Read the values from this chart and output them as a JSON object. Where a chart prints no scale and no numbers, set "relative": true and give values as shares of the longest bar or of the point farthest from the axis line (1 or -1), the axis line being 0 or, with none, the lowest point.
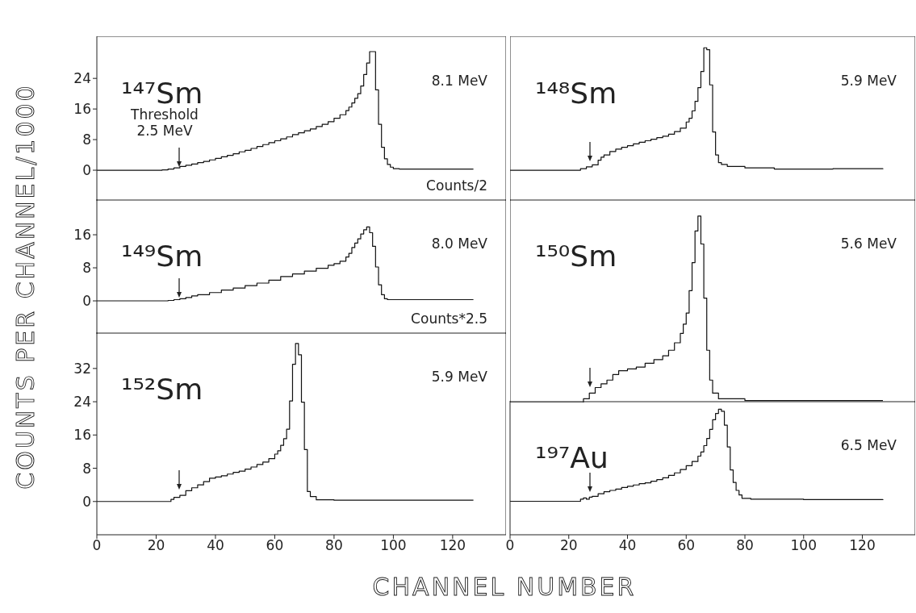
{
  "chart_data": [
    {
      "type": "step",
      "ylabel": "COUNTS PER CHANNEL/1000",
      "color": "#111111",
      "xlim": [
        0,
        138
      ],
      "xticks": [
        0,
        20,
        40,
        60,
        80,
        100,
        120
      ],
      "ylim": [
        -8,
        35
      ],
      "yticks": [
        0,
        8,
        16,
        24
      ],
      "tick_labels": "y",
      "x": [
        0,
        10,
        20,
        22,
        24,
        26,
        28,
        30,
        32,
        34,
        36,
        38,
        40,
        42,
        44,
        46,
        48,
        50,
        52,
        54,
        56,
        58,
        60,
        62,
        64,
        66,
        68,
        70,
        72,
        74,
        76,
        78,
        80,
        82,
        84,
        85,
        86,
        87,
        88,
        89,
        90,
        91,
        92,
        93,
        94,
        95,
        96,
        97,
        98,
        99,
        100,
        102,
        110,
        120,
        127
      ],
      "values": [
        0,
        0,
        0,
        0.1,
        0.3,
        0.6,
        1.0,
        1.3,
        1.6,
        2.0,
        2.3,
        2.7,
        3.1,
        3.5,
        3.9,
        4.3,
        4.8,
        5.2,
        5.7,
        6.2,
        6.7,
        7.2,
        7.7,
        8.2,
        8.7,
        9.3,
        9.8,
        10.3,
        10.8,
        11.4,
        12.0,
        12.7,
        13.6,
        14.5,
        15.6,
        16.5,
        17.6,
        18.8,
        20.0,
        22.0,
        25.0,
        28.0,
        31.0,
        31.0,
        21.0,
        12.0,
        6.0,
        3.0,
        1.5,
        0.8,
        0.4,
        0.3,
        0.3,
        0.3,
        0.3
      ],
      "annotations": [
        "¹⁴⁷Sm",
        "8.1 MeV",
        "Counts/2",
        "Threshold\n2.5 MeV"
      ]
    },
    {
      "type": "step",
      "color": "#111111",
      "xlim": [
        0,
        138
      ],
      "xticks": [
        0,
        20,
        40,
        60,
        80,
        100,
        120
      ],
      "ylim": [
        -8,
        24.6
      ],
      "yticks": [
        0,
        8,
        16
      ],
      "tick_labels": "y",
      "x": [
        0,
        20,
        22,
        24,
        26,
        28,
        30,
        32,
        34,
        38,
        42,
        46,
        50,
        54,
        58,
        62,
        66,
        70,
        74,
        78,
        80,
        82,
        84,
        85,
        86,
        87,
        88,
        89,
        90,
        91,
        92,
        93,
        94,
        95,
        96,
        97,
        98,
        110,
        127
      ],
      "values": [
        0,
        0,
        0,
        0.1,
        0.3,
        0.5,
        0.8,
        1.2,
        1.5,
        2.0,
        2.6,
        3.1,
        3.7,
        4.3,
        5.0,
        5.9,
        6.5,
        7.2,
        7.9,
        8.6,
        9.0,
        9.6,
        10.6,
        11.5,
        12.9,
        14.0,
        15.0,
        16.2,
        17.2,
        17.9,
        16.5,
        13.2,
        8.2,
        3.9,
        1.5,
        0.5,
        0.3,
        0.3,
        0.3
      ],
      "annotations": [
        "¹⁴⁹Sm",
        "8.0 MeV",
        "Counts*2.5"
      ]
    },
    {
      "type": "step",
      "xlabel": "CHANNEL NUMBER",
      "color": "#111111",
      "xlim": [
        0,
        138
      ],
      "xticks": [
        0,
        20,
        40,
        60,
        80,
        100,
        120
      ],
      "ylim": [
        -8,
        40.7
      ],
      "yticks": [
        0,
        8,
        16,
        24,
        32
      ],
      "x": [
        0,
        20,
        24,
        25,
        26,
        28,
        30,
        32,
        34,
        36,
        38,
        40,
        42,
        44,
        46,
        48,
        50,
        52,
        54,
        56,
        58,
        60,
        61,
        62,
        63,
        64,
        65,
        66,
        67,
        68,
        69,
        70,
        71,
        72,
        74,
        80,
        127
      ],
      "values": [
        0,
        0,
        0,
        0.5,
        1.0,
        1.5,
        2.6,
        3.3,
        4.0,
        4.8,
        5.6,
        5.9,
        6.2,
        6.6,
        7.0,
        7.3,
        7.8,
        8.3,
        8.9,
        9.5,
        10.3,
        11.4,
        12.2,
        13.5,
        15.1,
        17.4,
        24.2,
        33.0,
        38.0,
        35.3,
        23.9,
        12.5,
        2.4,
        1.2,
        0.4,
        0.3,
        0.3
      ],
      "annotations": [
        "¹⁵²Sm",
        "5.9 MeV"
      ]
    },
    {
      "type": "step",
      "color": "#111111",
      "xlim": [
        0,
        138
      ],
      "xticks": [
        0,
        20,
        40,
        60,
        80,
        100,
        120
      ],
      "ylim": [
        -8,
        35
      ],
      "yticks": [
        0,
        8,
        16,
        24
      ],
      "tick_labels": false,
      "x": [
        0,
        20,
        22,
        24,
        26,
        28,
        30,
        31,
        32,
        34,
        36,
        38,
        40,
        42,
        44,
        46,
        48,
        50,
        52,
        54,
        56,
        58,
        60,
        61,
        62,
        63,
        64,
        65,
        66,
        67,
        68,
        69,
        70,
        71,
        72,
        74,
        80,
        90,
        100,
        110,
        127
      ],
      "values": [
        0,
        0,
        0,
        0.4,
        0.9,
        1.4,
        2.6,
        3.4,
        4.0,
        4.9,
        5.5,
        6.0,
        6.4,
        6.9,
        7.3,
        7.7,
        8.1,
        8.5,
        8.9,
        9.4,
        10.1,
        11.0,
        12.6,
        13.6,
        15.5,
        18.0,
        21.6,
        25.8,
        32.0,
        31.5,
        22.3,
        10.0,
        4.0,
        2.0,
        1.5,
        1.0,
        0.6,
        0.3,
        0.3,
        0.4,
        0.5
      ],
      "annotations": [
        "¹⁴⁸Sm",
        "5.9 MeV"
      ]
    },
    {
      "type": "step",
      "relative": true,
      "color": "#111111",
      "xlim": [
        0,
        138
      ],
      "xticks": [
        0,
        20,
        40,
        60,
        80,
        100,
        120
      ],
      "tick_labels": false,
      "x": [
        0,
        20,
        23,
        25,
        27,
        29,
        31,
        33,
        35,
        37,
        40,
        43,
        46,
        49,
        52,
        54,
        56,
        58,
        59,
        60,
        61,
        62,
        63,
        64,
        65,
        66,
        67,
        68,
        69,
        71,
        80,
        127
      ],
      "values": [
        0,
        0,
        0,
        0.02,
        0.05,
        0.08,
        0.1,
        0.12,
        0.15,
        0.17,
        0.18,
        0.19,
        0.21,
        0.23,
        0.25,
        0.28,
        0.32,
        0.37,
        0.42,
        0.48,
        0.6,
        0.75,
        0.92,
        1.0,
        0.85,
        0.56,
        0.28,
        0.12,
        0.05,
        0.02,
        0.01,
        0.01
      ],
      "annotations": [
        "¹⁵⁰Sm",
        "5.6 MeV"
      ]
    },
    {
      "type": "step",
      "color": "#111111",
      "xlim": [
        0,
        138
      ],
      "xticks": [
        0,
        20,
        40,
        60,
        80,
        100,
        120
      ],
      "ylim": [
        -8,
        24
      ],
      "yticks": [
        0,
        8,
        16
      ],
      "tick_labels": "x",
      "x": [
        0,
        20,
        22,
        24,
        25,
        26,
        27,
        28,
        30,
        32,
        34,
        36,
        38,
        40,
        42,
        44,
        46,
        48,
        50,
        52,
        54,
        56,
        58,
        60,
        62,
        64,
        65,
        66,
        67,
        68,
        69,
        70,
        71,
        72,
        73,
        74,
        75,
        76,
        77,
        78,
        79,
        82,
        100,
        127
      ],
      "values": [
        0,
        0,
        0,
        0.5,
        0.8,
        0.5,
        1.0,
        1.2,
        1.8,
        2.3,
        2.6,
        2.9,
        3.3,
        3.6,
        3.9,
        4.2,
        4.4,
        4.8,
        5.2,
        5.6,
        6.2,
        6.8,
        7.6,
        8.5,
        9.5,
        10.8,
        11.8,
        13.3,
        15.0,
        17.2,
        19.5,
        21.0,
        22.0,
        21.5,
        18.2,
        13.0,
        7.5,
        4.5,
        2.6,
        1.5,
        0.7,
        0.5,
        0.4,
        0.5
      ],
      "annotations": [
        "¹⁹⁷Au",
        "6.5 MeV"
      ]
    }
  ]
}
